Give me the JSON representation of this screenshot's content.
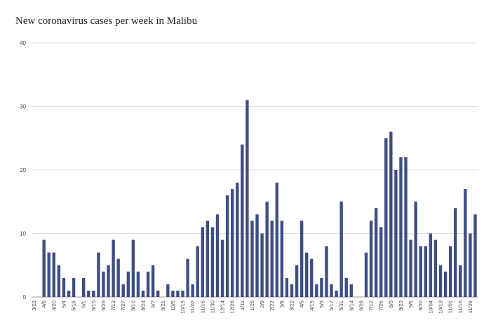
{
  "chart_data": {
    "type": "bar",
    "title": "New coronavirus cases per week in Malibu",
    "xlabel": "",
    "ylabel": "",
    "ylim": [
      0,
      40
    ],
    "yticks": [
      0,
      10,
      20,
      30,
      40
    ],
    "grid": true,
    "bar_color": "#3f4d84",
    "categories": [
      "3/23",
      "3/30",
      "4/6",
      "4/13",
      "4/20",
      "4/27",
      "5/4",
      "5/11",
      "5/18",
      "5/25",
      "6/1",
      "6/8",
      "6/15",
      "6/22",
      "6/29",
      "7/6",
      "7/13",
      "7/20",
      "7/27",
      "8/3",
      "8/10",
      "8/17",
      "8/24",
      "8/31",
      "9/7",
      "9/14",
      "9/21",
      "9/28",
      "10/5",
      "10/12",
      "10/19",
      "10/26",
      "11/02",
      "11/09",
      "11/16",
      "11/23",
      "11/30",
      "12/07",
      "12/14",
      "12/21",
      "12/28",
      "1/4",
      "1/11",
      "1/18",
      "1/25",
      "2/1",
      "2/8",
      "2/15",
      "2/22",
      "3/1",
      "3/8",
      "3/15",
      "3/22",
      "3/29",
      "4/5",
      "4/12",
      "4/19",
      "4/26",
      "5/3",
      "5/10",
      "5/17",
      "5/24",
      "5/31",
      "6/7",
      "6/14",
      "6/21",
      "6/28",
      "7/5",
      "7/12",
      "7/19",
      "7/26",
      "8/2",
      "8/9",
      "8/16",
      "8/23",
      "8/30",
      "9/6",
      "9/13",
      "9/20",
      "9/27",
      "10/04",
      "10/11",
      "10/18",
      "10/25",
      "11/01",
      "11/08",
      "11/15",
      "11/22",
      "11/29",
      "12/6"
    ],
    "values": [
      0,
      0,
      9,
      7,
      7,
      5,
      3,
      1,
      3,
      0,
      3,
      1,
      1,
      7,
      4,
      5,
      9,
      6,
      2,
      4,
      9,
      4,
      1,
      4,
      5,
      1,
      0,
      2,
      1,
      1,
      1,
      6,
      2,
      8,
      11,
      12,
      11,
      13,
      9,
      16,
      17,
      18,
      24,
      31,
      12,
      13,
      10,
      15,
      12,
      18,
      12,
      3,
      2,
      5,
      12,
      7,
      6,
      2,
      3,
      8,
      2,
      1,
      15,
      3,
      2,
      0,
      0,
      7,
      12,
      14,
      11,
      25,
      26,
      20,
      22,
      22,
      9,
      15,
      8,
      8,
      10,
      9,
      5,
      4,
      8,
      14,
      5,
      17,
      10,
      13
    ],
    "visible_tick_labels": [
      "3/23",
      "4/6",
      "4/20",
      "5/4",
      "5/18",
      "6/1",
      "6/15",
      "6/29",
      "7/13",
      "7/27",
      "8/10",
      "8/24",
      "9/7",
      "9/21",
      "10/5",
      "10/19",
      "11/02",
      "11/16",
      "11/30",
      "12/14",
      "12/28",
      "1/11",
      "1/25",
      "2/8",
      "2/22",
      "3/8",
      "3/22",
      "4/5",
      "4/19",
      "5/3",
      "5/17",
      "5/31",
      "6/14",
      "6/28",
      "7/12",
      "7/26",
      "8/9",
      "8/23",
      "9/6",
      "9/20",
      "10/04",
      "10/18",
      "11/01",
      "11/15",
      "11/29"
    ]
  }
}
